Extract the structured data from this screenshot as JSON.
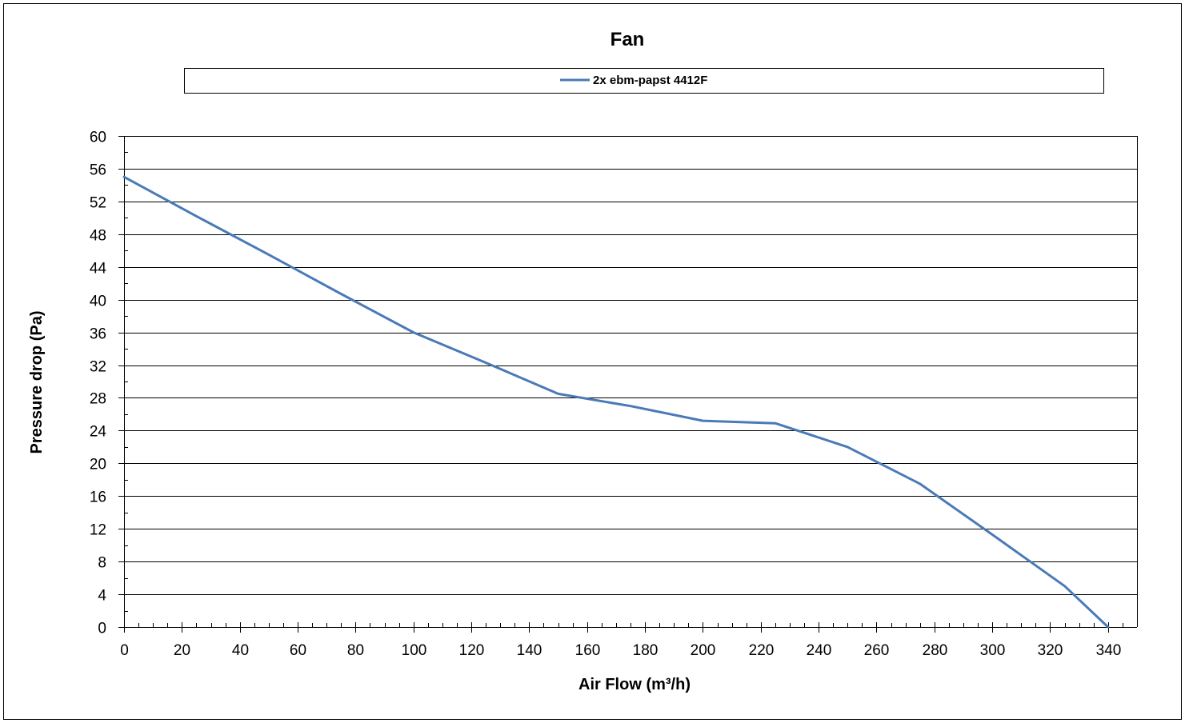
{
  "chart_data": {
    "type": "line",
    "title": "Fan",
    "xlabel": "Air Flow (m³/h)",
    "ylabel": "Pressure drop (Pa)",
    "xlim": [
      0,
      350
    ],
    "ylim": [
      0,
      60
    ],
    "x_ticks": [
      0,
      20,
      40,
      60,
      80,
      100,
      120,
      140,
      160,
      180,
      200,
      220,
      240,
      260,
      280,
      300,
      320,
      340
    ],
    "y_ticks": [
      0,
      4,
      8,
      12,
      16,
      20,
      24,
      28,
      32,
      36,
      40,
      44,
      48,
      52,
      56,
      60
    ],
    "grid": "horizontal",
    "legend_position": "top",
    "series": [
      {
        "name": "2x ebm-papst 4412F",
        "color": "#4a7ab7",
        "x": [
          0,
          25,
          50,
          75,
          100,
          125,
          150,
          175,
          200,
          225,
          250,
          275,
          300,
          325,
          340
        ],
        "y": [
          55,
          50.2,
          45.5,
          40.7,
          36,
          32.3,
          28.5,
          27,
          25.2,
          24.9,
          22,
          17.5,
          11.3,
          5,
          0
        ]
      }
    ]
  }
}
